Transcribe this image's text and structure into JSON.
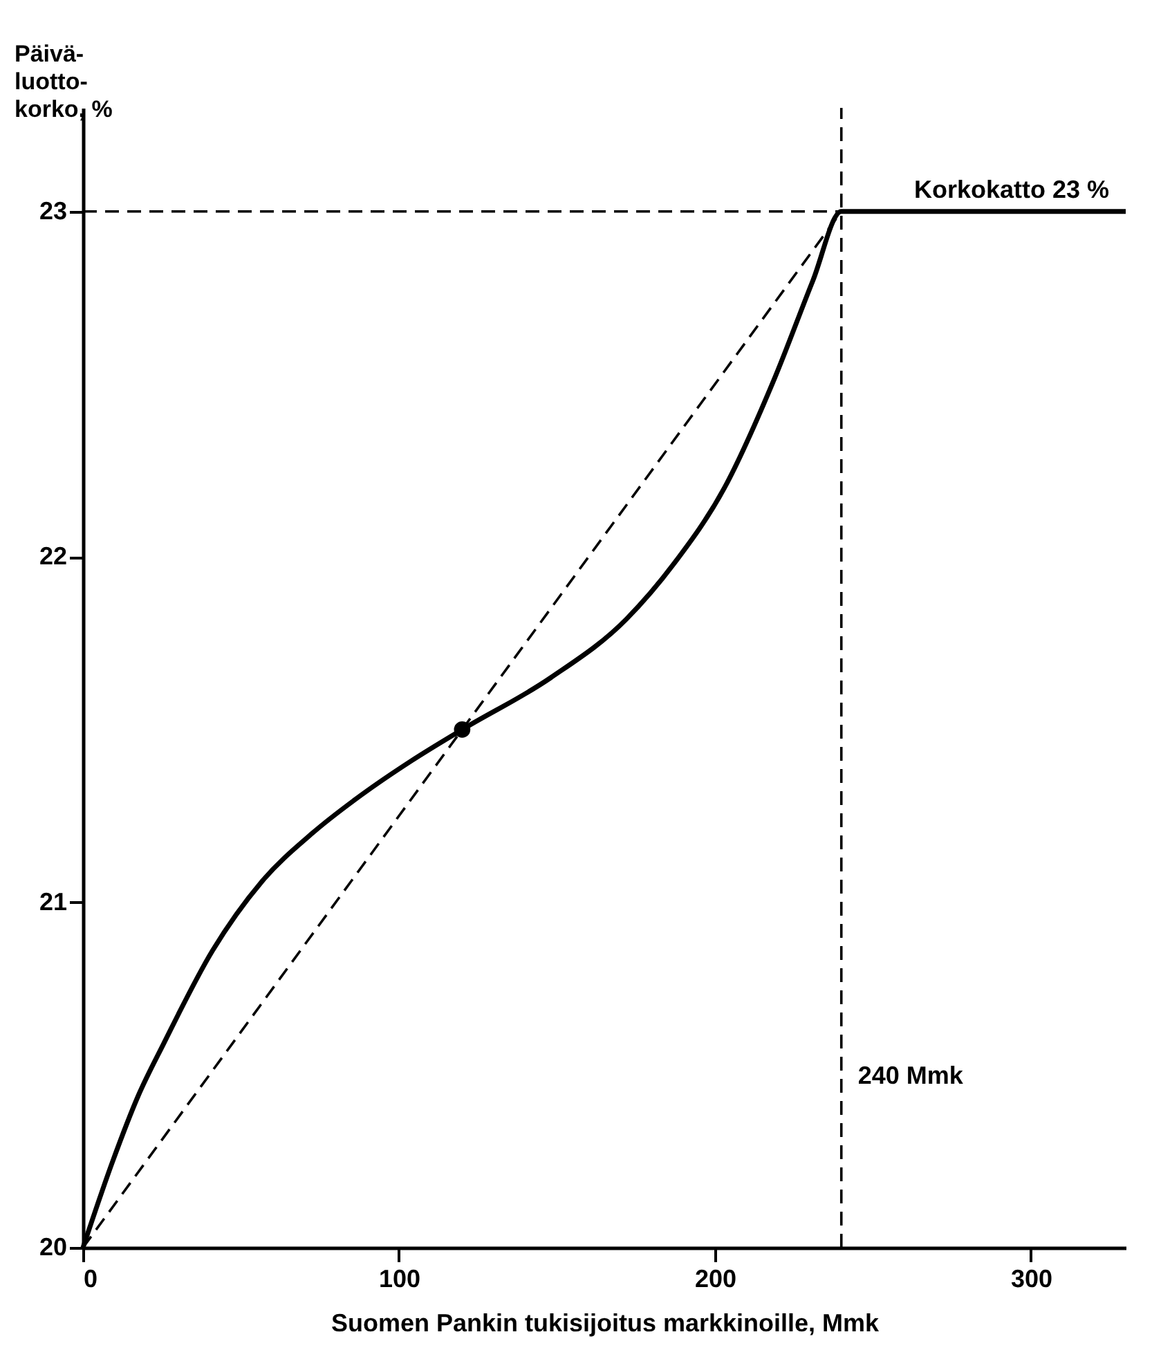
{
  "chart_data": {
    "type": "line",
    "xlabel": "Suomen Pankin tukisijoitus markkinoille, Mmk",
    "ylabel": "Päivä-\nluotto-\nkorko, %",
    "xlim": [
      0,
      330
    ],
    "xticks": [
      0,
      100,
      200,
      300
    ],
    "ylim": [
      20,
      23.3
    ],
    "yticks": [
      20,
      21,
      22,
      23
    ],
    "grid": false,
    "series": [
      {
        "color": "#000000",
        "line_style": "solid",
        "marker": "none",
        "x": [
          0,
          9.4,
          17.5,
          25.5,
          41,
          56.6,
          72.6,
          88,
          104,
          120,
          148,
          172,
          187,
          203,
          219,
          231,
          240,
          330
        ],
        "values": [
          20,
          20.25,
          20.44,
          20.59,
          20.86,
          21.06,
          21.2,
          21.31,
          21.41,
          21.5,
          21.65,
          21.82,
          21.98,
          22.2,
          22.52,
          22.8,
          23,
          23
        ]
      },
      {
        "type": "line",
        "color": "#000000",
        "line_style": "dashed",
        "marker": "none",
        "x": [
          0,
          240
        ],
        "values": [
          20,
          23
        ]
      },
      {
        "type": "scatter",
        "color": "#000000",
        "marker": "circle",
        "x": [
          120
        ],
        "values": [
          21.5
        ]
      }
    ],
    "ref_lines": [
      {
        "axis": "y",
        "value": 23,
        "line_style": "dashed",
        "label": "Korkokatto 23 %"
      },
      {
        "axis": "x",
        "value": 240,
        "line_style": "dashed",
        "label": "240 Mmk"
      }
    ]
  }
}
